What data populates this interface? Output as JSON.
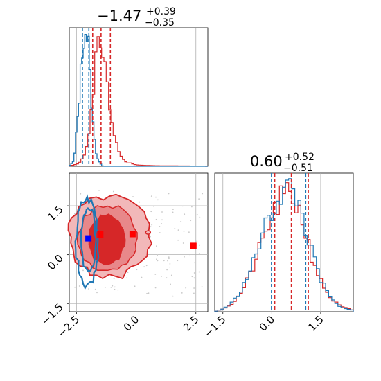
{
  "chart_data": {
    "type": "corner",
    "parameter_titles": [
      {
        "median": "−1.47",
        "plus": "+0.39",
        "minus": "−0.35"
      },
      {
        "median": "0.60",
        "plus": "+0.52",
        "minus": "−0.51"
      }
    ],
    "colors": {
      "series_red": "#d62728",
      "series_blue": "#1f77b4",
      "fill_red": "#e06b6e",
      "marker_blue": "#0000ff",
      "marker_red": "#ff0000"
    },
    "axes": {
      "param1": {
        "range": [
          -2.8,
          3.0
        ],
        "ticks": [
          -2.5,
          0.0,
          2.5
        ],
        "tick_labels": [
          "−2.5",
          "0.0",
          "2.5"
        ]
      },
      "param2": {
        "range": [
          -1.75,
          2.5
        ],
        "ticks": [
          -1.5,
          0.0,
          1.5
        ],
        "tick_labels": [
          "−1.5",
          "0.0",
          "1.5"
        ]
      },
      "grid": true
    },
    "hist_param1": {
      "red_quantiles": [
        -1.82,
        -1.47,
        -1.08
      ],
      "blue_quantiles": [
        -2.25,
        -1.98
      ],
      "red": {
        "x": [
          -2.8,
          -2.6,
          -2.4,
          -2.2,
          -2.0,
          -1.8,
          -1.6,
          -1.4,
          -1.2,
          -1.0,
          -0.8,
          -0.6,
          -0.4,
          -0.2,
          0.0,
          0.4,
          0.8,
          1.5,
          2.5,
          3.0
        ],
        "density": [
          0.0,
          0.01,
          0.02,
          0.07,
          0.2,
          0.55,
          0.92,
          0.83,
          0.58,
          0.3,
          0.15,
          0.06,
          0.03,
          0.02,
          0.01,
          0.006,
          0.004,
          0.003,
          0.002,
          0.0
        ]
      },
      "blue": {
        "x": [
          -2.8,
          -2.6,
          -2.4,
          -2.3,
          -2.2,
          -2.1,
          -2.0,
          -1.95,
          -1.9,
          -1.8,
          -1.7,
          -1.6,
          -1.5,
          -1.4
        ],
        "density": [
          0.0,
          0.04,
          0.45,
          0.72,
          0.95,
          0.98,
          0.9,
          0.7,
          0.55,
          0.3,
          0.12,
          0.05,
          0.02,
          0.0
        ]
      }
    },
    "hist_param2": {
      "red_quantiles": [
        0.09,
        0.6,
        1.12
      ],
      "blue_quantiles": [
        -0.01,
        1.04
      ],
      "red": {
        "x": [
          -1.75,
          -1.5,
          -1.2,
          -0.9,
          -0.6,
          -0.3,
          0.0,
          0.3,
          0.6,
          0.9,
          1.2,
          1.5,
          1.8,
          2.1,
          2.5
        ],
        "density": [
          0.0,
          0.02,
          0.06,
          0.15,
          0.3,
          0.5,
          0.68,
          0.82,
          0.85,
          0.7,
          0.42,
          0.22,
          0.1,
          0.04,
          0.01
        ]
      },
      "blue": {
        "x": [
          -1.75,
          -1.5,
          -1.2,
          -0.9,
          -0.6,
          -0.3,
          0.0,
          0.3,
          0.6,
          0.9,
          1.2,
          1.5,
          1.8,
          2.1,
          2.5
        ],
        "density": [
          0.0,
          0.02,
          0.07,
          0.17,
          0.33,
          0.55,
          0.72,
          0.87,
          0.9,
          0.74,
          0.45,
          0.23,
          0.1,
          0.03,
          0.01
        ]
      }
    },
    "markers": [
      {
        "name": "blue_square",
        "x": -2.0,
        "y": 0.5,
        "color": "#0000ff"
      },
      {
        "name": "red_square_1",
        "x": -1.5,
        "y": 0.62,
        "color": "#ff0000"
      },
      {
        "name": "red_square_2",
        "x": -0.15,
        "y": 0.63,
        "color": "#ff0000"
      },
      {
        "name": "red_square_3",
        "x": 2.4,
        "y": 0.27,
        "color": "#ff0000"
      }
    ]
  }
}
